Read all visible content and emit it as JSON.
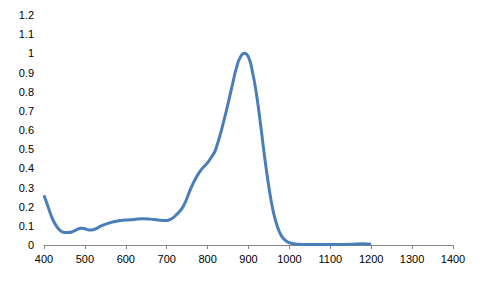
{
  "chart_data": {
    "type": "line",
    "x": [
      400,
      410,
      420,
      430,
      440,
      450,
      460,
      470,
      480,
      490,
      500,
      510,
      520,
      530,
      540,
      560,
      580,
      600,
      620,
      640,
      660,
      680,
      700,
      710,
      720,
      740,
      760,
      780,
      800,
      810,
      820,
      840,
      860,
      870,
      880,
      890,
      900,
      910,
      920,
      930,
      940,
      950,
      960,
      970,
      980,
      990,
      1000,
      1020,
      1050,
      1100,
      1150,
      1180,
      1200
    ],
    "values": [
      0.26,
      0.2,
      0.14,
      0.1,
      0.075,
      0.065,
      0.065,
      0.07,
      0.08,
      0.088,
      0.085,
      0.078,
      0.08,
      0.088,
      0.1,
      0.115,
      0.125,
      0.13,
      0.133,
      0.137,
      0.135,
      0.13,
      0.128,
      0.135,
      0.15,
      0.2,
      0.3,
      0.38,
      0.43,
      0.46,
      0.5,
      0.65,
      0.83,
      0.92,
      0.98,
      1.0,
      0.98,
      0.9,
      0.78,
      0.62,
      0.45,
      0.3,
      0.18,
      0.1,
      0.05,
      0.025,
      0.012,
      0.004,
      0.002,
      0.002,
      0.004,
      0.006,
      0.004
    ],
    "color": "#4a7ebb",
    "xlim": [
      400,
      1400
    ],
    "xticks": [
      400,
      500,
      600,
      700,
      800,
      900,
      1000,
      1100,
      1200,
      1300,
      1400
    ],
    "ylim": [
      0,
      1.2
    ],
    "yticks": [
      0,
      0.1,
      0.2,
      0.3,
      0.4,
      0.5,
      0.6,
      0.7,
      0.8,
      0.9,
      1,
      1.1,
      1.2
    ],
    "grid": false
  }
}
